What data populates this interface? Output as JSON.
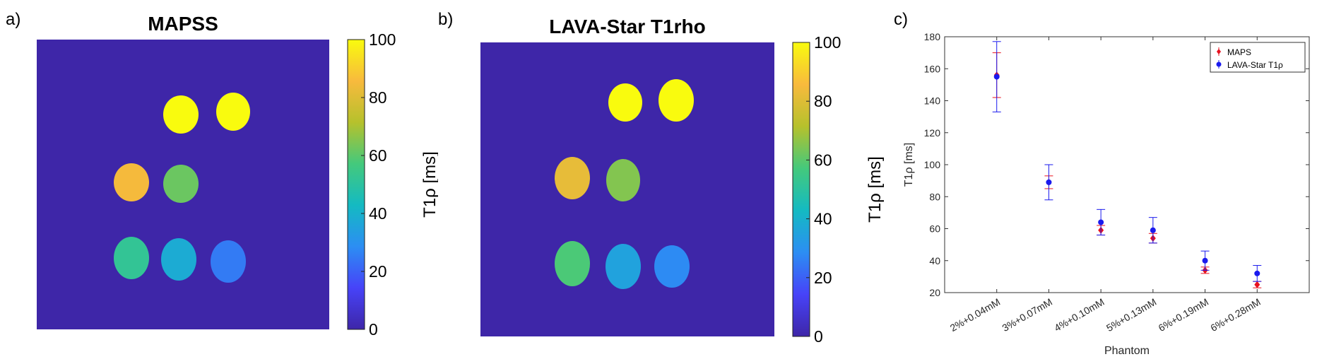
{
  "figure": {
    "panel_labels": [
      "a)",
      "b)",
      "c)"
    ],
    "colormap": [
      "#3e26a8",
      "#4743f8",
      "#2c8ef3",
      "#14bac2",
      "#44c97c",
      "#b6c12c",
      "#f8ba3d",
      "#f9fb0e"
    ]
  },
  "maps": [
    {
      "title": "MAPSS",
      "colorbar": {
        "label": "T1ρ [ms]",
        "ticks": [
          "0",
          "20",
          "40",
          "60",
          "80",
          "100"
        ],
        "min": 0,
        "max": 100
      },
      "background_value": 0,
      "phantom_values": [
        100,
        100,
        85,
        62,
        52,
        38,
        25
      ]
    },
    {
      "title": "LAVA-Star T1rho",
      "colorbar": {
        "label": "T1ρ [ms]",
        "ticks": [
          "0",
          "20",
          "40",
          "60",
          "80",
          "100"
        ],
        "min": 0,
        "max": 100
      },
      "background_value": 0,
      "phantom_values": [
        100,
        100,
        82,
        65,
        58,
        35,
        28
      ]
    }
  ],
  "chart_data": {
    "type": "scatter",
    "xlabel": "Phantom",
    "ylabel": "T1ρ [ms]",
    "categories": [
      "2%+0.04mM",
      "3%+0.07mM",
      "4%+0.10mM",
      "5%+0.13mM",
      "6%+0.19mM",
      "6%+0.28mM"
    ],
    "ylim": [
      20,
      180
    ],
    "yticks": [
      "20",
      "40",
      "60",
      "80",
      "100",
      "120",
      "140",
      "160",
      "180"
    ],
    "legend_position": "top-right",
    "grid": false,
    "series": [
      {
        "name": "MAPS",
        "color": "#e8121f",
        "marker": "diamond",
        "values": [
          156,
          89,
          59,
          54,
          34,
          25
        ],
        "errors": [
          14,
          4,
          3,
          3,
          2,
          2
        ]
      },
      {
        "name": "LAVA-Star T1ρ",
        "color": "#1a1aee",
        "marker": "circle",
        "values": [
          155,
          89,
          64,
          59,
          40,
          32
        ],
        "errors": [
          22,
          11,
          8,
          8,
          6,
          5
        ]
      }
    ]
  }
}
